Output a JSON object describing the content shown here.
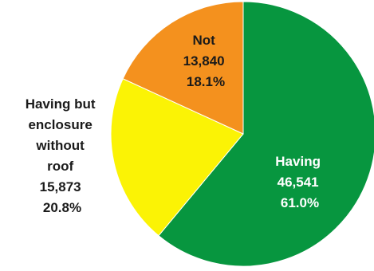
{
  "chart_data": {
    "type": "pie",
    "start_angle_deg": 0,
    "direction": "clockwise",
    "slices": [
      {
        "lines": [
          "Having",
          "46,541",
          "61.0%"
        ],
        "value": 46541,
        "percent": 61.0,
        "color": "#07963f",
        "label_color": "#ffffff"
      },
      {
        "lines": [
          "Having but",
          "enclosure",
          "without",
          "roof",
          "15,873",
          "20.8%"
        ],
        "value": 15873,
        "percent": 20.8,
        "color": "#fbf305",
        "label_color": "#1a1a1a"
      },
      {
        "lines": [
          "Not",
          "13,840",
          "18.1%"
        ],
        "value": 13840,
        "percent": 18.1,
        "color": "#f4911e",
        "label_color": "#1a1a1a"
      }
    ]
  }
}
